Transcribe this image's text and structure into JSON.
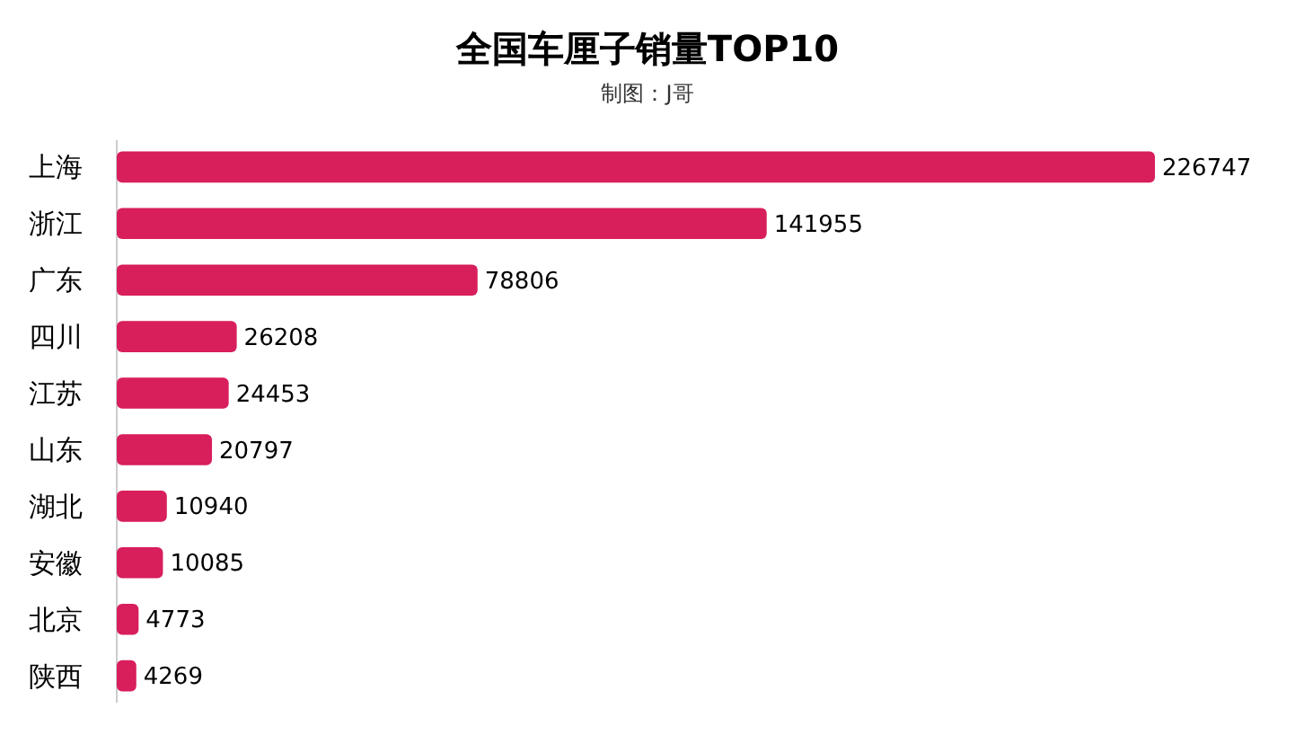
{
  "chart_data": {
    "type": "bar",
    "orientation": "horizontal",
    "title": "全国车厘子销量TOP10",
    "subtitle": "制图：J哥",
    "categories": [
      "上海",
      "浙江",
      "广东",
      "四川",
      "江苏",
      "山东",
      "湖北",
      "安徽",
      "北京",
      "陕西"
    ],
    "values": [
      226747,
      141955,
      78806,
      26208,
      24453,
      20797,
      10940,
      10085,
      4773,
      4269
    ],
    "color": "#d81e5b",
    "data_labels": true
  }
}
